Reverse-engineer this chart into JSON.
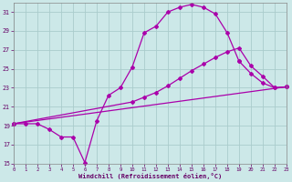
{
  "bg_color": "#cce8e8",
  "grid_color": "#aacccc",
  "line_color": "#aa00aa",
  "xlabel": "Windchill (Refroidissement éolien,°C)",
  "xlim": [
    0,
    23
  ],
  "ylim": [
    15,
    32
  ],
  "yticks": [
    15,
    17,
    19,
    21,
    23,
    25,
    27,
    29,
    31
  ],
  "xticks": [
    0,
    1,
    2,
    3,
    4,
    5,
    6,
    7,
    8,
    9,
    10,
    11,
    12,
    13,
    14,
    15,
    16,
    17,
    18,
    19,
    20,
    21,
    22,
    23
  ],
  "line1_x": [
    0,
    1,
    2,
    3,
    4,
    5,
    6,
    7,
    8,
    9,
    10,
    11,
    12,
    13,
    14,
    15,
    16,
    17,
    18,
    19
  ],
  "line1_y": [
    19.2,
    19.2,
    19.2,
    18.6,
    17.8,
    17.8,
    15.1,
    19.5,
    22.2,
    23.0,
    25.2,
    28.8,
    29.5,
    31.0,
    31.5,
    31.8,
    31.5,
    30.8,
    28.8,
    25.8
  ],
  "line2_x": [
    0,
    10,
    11,
    12,
    13,
    14,
    15,
    16,
    17,
    18,
    19,
    20,
    21,
    22,
    23
  ],
  "line2_y": [
    19.2,
    21.5,
    22.0,
    22.5,
    23.2,
    24.0,
    24.8,
    25.5,
    26.2,
    26.8,
    27.2,
    25.3,
    24.2,
    23.0,
    23.1
  ],
  "line3_x": [
    0,
    23
  ],
  "line3_y": [
    19.2,
    23.1
  ],
  "line4_x": [
    19,
    20,
    21,
    22,
    23
  ],
  "line4_y": [
    25.8,
    24.5,
    23.5,
    23.0,
    23.1
  ]
}
